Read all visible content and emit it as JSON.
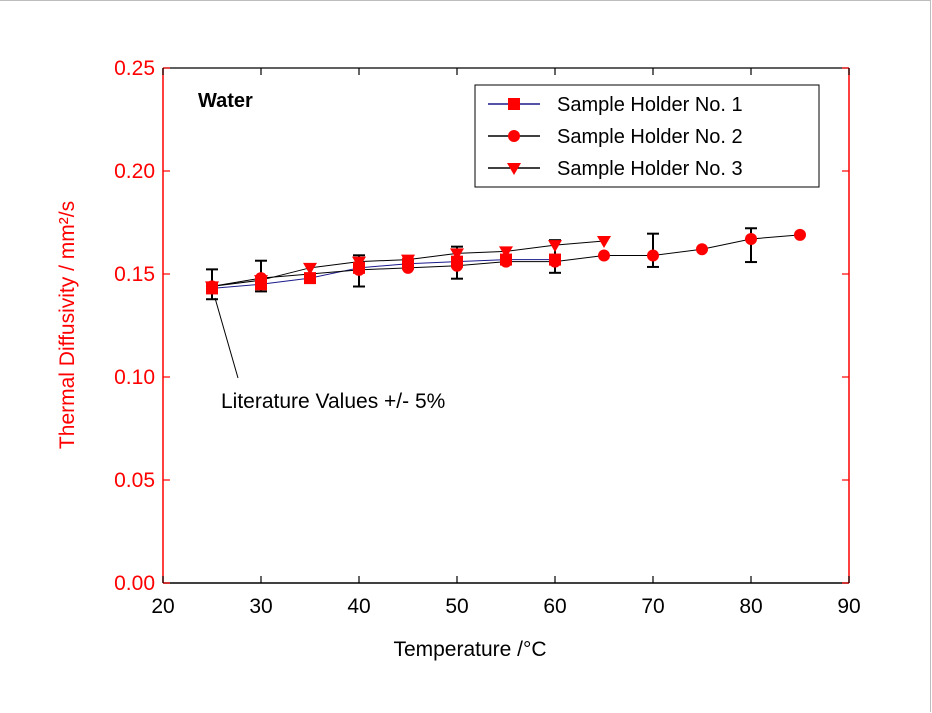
{
  "chart_data": {
    "type": "line",
    "title": "Water",
    "xlabel": "Temperature /°C",
    "ylabel": "Thermal Diffusivity / mm²/s",
    "xlim": [
      20,
      90
    ],
    "ylim": [
      0.0,
      0.25
    ],
    "x_ticks": [
      "20",
      "30",
      "40",
      "50",
      "60",
      "70",
      "80",
      "90"
    ],
    "y_ticks": [
      "0.00",
      "0.05",
      "0.10",
      "0.15",
      "0.20",
      "0.25"
    ],
    "grid": false,
    "legend_position": "top-right",
    "annotation": "Literature Values +/- 5%",
    "axis_color": "#ff0000",
    "series": [
      {
        "name": "Sample Holder No. 1",
        "marker": "square",
        "color": "#ff0000",
        "line_color": "#1a1a8c",
        "x": [
          25,
          30,
          35,
          40,
          45,
          50,
          55,
          60
        ],
        "y": [
          0.143,
          0.145,
          0.148,
          0.153,
          0.155,
          0.156,
          0.157,
          0.157
        ]
      },
      {
        "name": "Sample Holder No. 2",
        "marker": "circle",
        "color": "#ff0000",
        "line_color": "#000000",
        "x": [
          25,
          30,
          40,
          45,
          50,
          55,
          60,
          65,
          70,
          75,
          80,
          85
        ],
        "y": [
          0.144,
          0.148,
          0.152,
          0.153,
          0.154,
          0.156,
          0.156,
          0.159,
          0.159,
          0.162,
          0.167,
          0.169
        ]
      },
      {
        "name": "Sample Holder No. 3",
        "marker": "triangle-down",
        "color": "#ff0000",
        "line_color": "#000000",
        "x": [
          25,
          30,
          35,
          40,
          45,
          50,
          55,
          60,
          65
        ],
        "y": [
          0.144,
          0.147,
          0.153,
          0.156,
          0.157,
          0.16,
          0.161,
          0.164,
          0.166
        ]
      }
    ],
    "error_bars": {
      "name": "Literature Values +/- 5%",
      "x": [
        25,
        30,
        40,
        50,
        60,
        70,
        80
      ],
      "center": [
        0.145,
        0.149,
        0.1515,
        0.1555,
        0.1585,
        0.1615,
        0.164
      ],
      "half_width_percent": 5
    }
  }
}
